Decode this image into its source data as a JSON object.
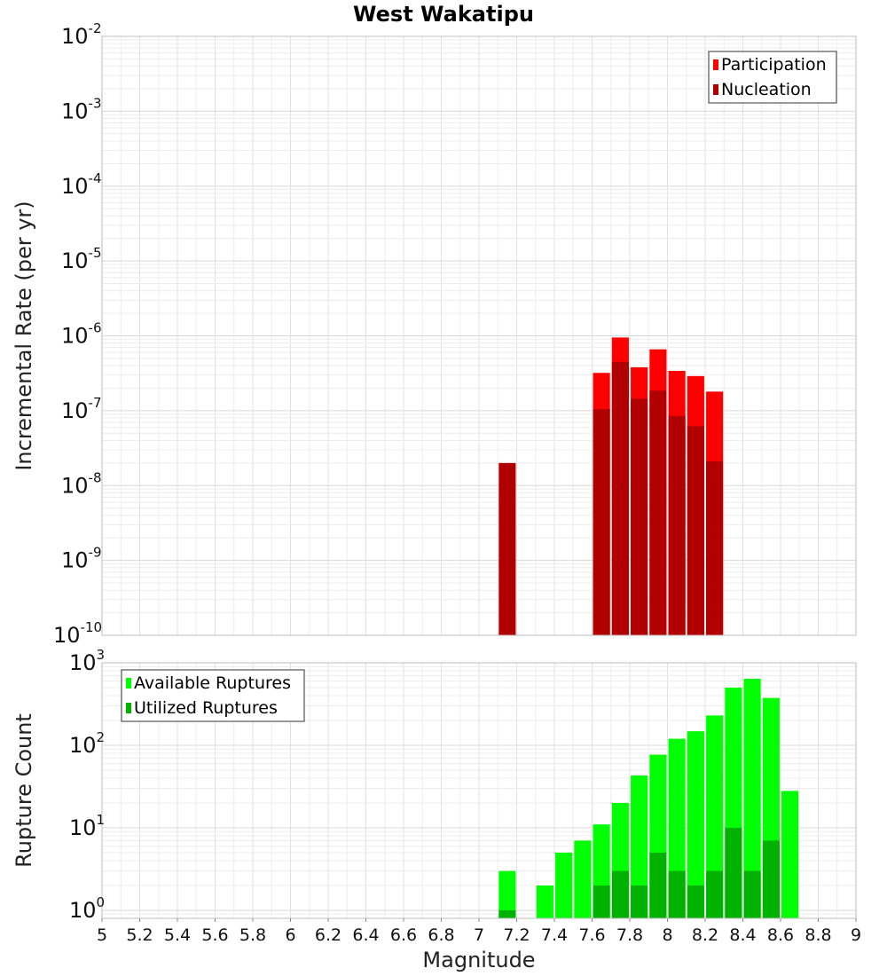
{
  "chart_data": [
    {
      "type": "bar",
      "title": "West Wakatipu",
      "ylabel": "Incremental Rate (per yr)",
      "xlabel": "",
      "xlim": [
        5,
        9
      ],
      "yscale": "log",
      "ylim": [
        1e-10,
        0.01
      ],
      "grid": true,
      "legend_position": "top-right",
      "bar_width": 0.09,
      "series": [
        {
          "name": "Participation",
          "color": "#ff0000",
          "x": [
            7.65,
            7.75,
            7.85,
            7.95,
            8.05,
            8.15,
            8.25
          ],
          "values": [
            3.2e-07,
            9.5e-07,
            3.8e-07,
            6.6e-07,
            3.4e-07,
            2.9e-07,
            1.8e-07
          ]
        },
        {
          "name": "Nucleation",
          "color": "#b20000",
          "x": [
            7.15,
            7.65,
            7.75,
            7.85,
            7.95,
            8.05,
            8.15,
            8.25
          ],
          "values": [
            2e-08,
            1.05e-07,
            4.5e-07,
            1.45e-07,
            1.85e-07,
            8.5e-08,
            6.2e-08,
            2.1e-08
          ]
        }
      ],
      "yticks": [
        {
          "base": "10",
          "exp": "-10"
        },
        {
          "base": "10",
          "exp": "-9"
        },
        {
          "base": "10",
          "exp": "-8"
        },
        {
          "base": "10",
          "exp": "-7"
        },
        {
          "base": "10",
          "exp": "-6"
        },
        {
          "base": "10",
          "exp": "-5"
        },
        {
          "base": "10",
          "exp": "-4"
        },
        {
          "base": "10",
          "exp": "-3"
        },
        {
          "base": "10",
          "exp": "-2"
        }
      ]
    },
    {
      "type": "bar",
      "title": "",
      "ylabel": "Rupture Count",
      "xlabel": "Magnitude",
      "xlim": [
        5,
        9
      ],
      "yscale": "log",
      "ylim": [
        0.8,
        1000
      ],
      "grid": true,
      "legend_position": "top-left",
      "bar_width": 0.09,
      "series": [
        {
          "name": "Available Ruptures",
          "color": "#00ff00",
          "x": [
            7.15,
            7.35,
            7.45,
            7.55,
            7.65,
            7.75,
            7.85,
            7.95,
            8.05,
            8.15,
            8.25,
            8.35,
            8.45,
            8.55,
            8.65
          ],
          "values": [
            3,
            2,
            5,
            7,
            11,
            20,
            43,
            77,
            120,
            148,
            230,
            500,
            640,
            375,
            28
          ]
        },
        {
          "name": "Utilized Ruptures",
          "color": "#00b200",
          "x": [
            7.15,
            7.65,
            7.75,
            7.85,
            7.95,
            8.05,
            8.15,
            8.25,
            8.35,
            8.45,
            8.55
          ],
          "values": [
            1,
            2,
            3,
            2,
            5,
            3,
            2,
            3,
            10,
            3,
            7
          ]
        }
      ],
      "yticks": [
        {
          "base": "10",
          "exp": "0"
        },
        {
          "base": "10",
          "exp": "1"
        },
        {
          "base": "10",
          "exp": "2"
        },
        {
          "base": "10",
          "exp": "3"
        }
      ],
      "xticks": [
        "5",
        "5.2",
        "5.4",
        "5.6",
        "5.8",
        "6",
        "6.2",
        "6.4",
        "6.6",
        "6.8",
        "7",
        "7.2",
        "7.4",
        "7.6",
        "7.8",
        "8",
        "8.2",
        "8.4",
        "8.6",
        "8.8",
        "9"
      ]
    }
  ]
}
